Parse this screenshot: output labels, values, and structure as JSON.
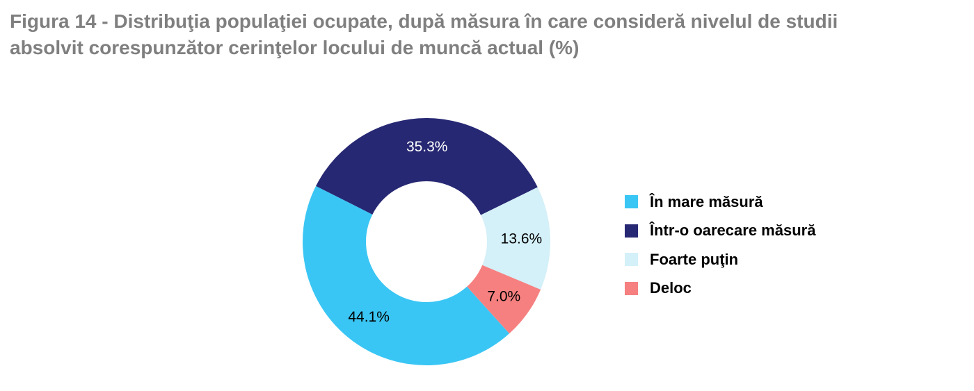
{
  "chart_data": {
    "type": "pie",
    "variant": "donut",
    "title_lines": [
      "Figura 14 - Distribuţia populaţiei ocupate, după măsura în care consideră nivelul de studii",
      "absolvit corespunzător cerinţelor locului de muncă actual (%)"
    ],
    "legend_position": "right",
    "series": [
      {
        "name": "În  mare măsură",
        "value": 44.1,
        "label": "44.1%",
        "color": "#3ac6f4",
        "label_color": "#000000"
      },
      {
        "name": "Într-o oarecare măsură",
        "value": 35.3,
        "label": "35.3%",
        "color": "#272873",
        "label_color": "#ffffff"
      },
      {
        "name": "Foarte puţin",
        "value": 13.6,
        "label": "13.6%",
        "color": "#d4f0f8",
        "label_color": "#000000"
      },
      {
        "name": "Deloc",
        "value": 7.0,
        "label": "7.0%",
        "color": "#f68080",
        "label_color": "#000000"
      }
    ]
  }
}
